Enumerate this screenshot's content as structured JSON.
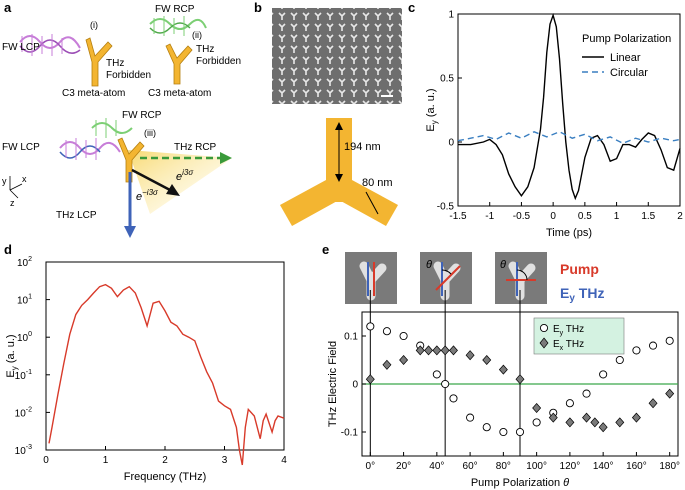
{
  "panels": {
    "a": {
      "label": "a",
      "cell_i": {
        "roman": "(i)",
        "pump": "FW LCP",
        "status_line1": "THz",
        "status_line2": "Forbidden",
        "caption": "C3 meta-atom"
      },
      "cell_ii": {
        "roman": "(ii)",
        "pump": "FW RCP",
        "status_line1": "THz",
        "status_line2": "Forbidden",
        "caption": "C3 meta-atom"
      },
      "cell_iii": {
        "roman": "(iii)",
        "pump_top": "FW RCP",
        "pump_left": "FW LCP",
        "out_rcp": "THz RCP",
        "out_lcp": "THz LCP",
        "phase_pos": "e",
        "phase_pos_exp": "i3σ",
        "phase_neg": "e",
        "phase_neg_exp": "−i3σ"
      },
      "axes": {
        "y": "y",
        "x": "x",
        "z": "z"
      },
      "colors": {
        "gold": "#f3b531",
        "lcp": "#c77dd8",
        "rcp": "#7ccf74",
        "blue": "#3f63b8",
        "green": "#3a9a3a"
      }
    },
    "b": {
      "label": "b",
      "dim_arm_length": "194 nm",
      "dim_arm_width": "80 nm"
    }
  },
  "chart_data": [
    {
      "panel": "c",
      "type": "line",
      "ylabel": "E",
      "ylabel_sub": "y",
      "ylabel_suffix": " (a. u.)",
      "xlabel": "Time (ps)",
      "xlim": [
        -1.5,
        2
      ],
      "ylim": [
        -0.5,
        1.0
      ],
      "xticks": [
        "-1.5",
        "-1",
        "-0.5",
        "0",
        "0.5",
        "1",
        "1.5",
        "2"
      ],
      "yticks": [
        "-0.5",
        "0",
        "0.5",
        "1"
      ],
      "legend_title": "Pump Polarization",
      "legend_position": "top-right",
      "series": [
        {
          "name": "Linear",
          "color": "#000000",
          "style": "solid",
          "x": [
            -1.5,
            -1.3,
            -1.1,
            -1.0,
            -0.9,
            -0.8,
            -0.7,
            -0.6,
            -0.5,
            -0.4,
            -0.3,
            -0.2,
            -0.15,
            -0.1,
            -0.05,
            0.0,
            0.05,
            0.1,
            0.15,
            0.2,
            0.25,
            0.3,
            0.35,
            0.4,
            0.5,
            0.6,
            0.7,
            0.8,
            0.9,
            1.0,
            1.1,
            1.2,
            1.3,
            1.4,
            1.5,
            1.6,
            1.7,
            1.8,
            1.9,
            2.0
          ],
          "y": [
            -0.02,
            -0.02,
            0.0,
            0.02,
            -0.02,
            -0.1,
            -0.25,
            -0.35,
            -0.42,
            -0.35,
            -0.2,
            0.1,
            0.35,
            0.7,
            0.92,
            0.99,
            0.9,
            0.65,
            0.3,
            0.0,
            -0.22,
            -0.37,
            -0.44,
            -0.38,
            -0.12,
            0.03,
            0.05,
            -0.02,
            -0.15,
            -0.13,
            -0.02,
            -0.02,
            -0.04,
            0.02,
            0.07,
            0.05,
            -0.06,
            -0.2,
            -0.22,
            -0.05
          ]
        },
        {
          "name": "Circular",
          "color": "#3a7fc1",
          "style": "dashed",
          "x": [
            -1.5,
            -1.3,
            -1.1,
            -0.9,
            -0.7,
            -0.5,
            -0.3,
            -0.1,
            0.1,
            0.3,
            0.5,
            0.7,
            0.9,
            1.1,
            1.3,
            1.5,
            1.7,
            1.9,
            2.0
          ],
          "y": [
            0.01,
            0.03,
            0.05,
            0.02,
            0.07,
            0.03,
            0.08,
            0.04,
            0.08,
            0.03,
            0.06,
            0.01,
            0.04,
            -0.01,
            0.03,
            0.0,
            0.03,
            0.01,
            0.02
          ]
        }
      ]
    },
    {
      "panel": "d",
      "type": "line",
      "ylabel": "E",
      "ylabel_sub": "y",
      "ylabel_suffix": " (a. u.)",
      "xlabel": "Frequency (THz)",
      "xlim": [
        0,
        4
      ],
      "ylim_log10": [
        -3,
        2
      ],
      "log_scale_y": true,
      "xticks": [
        "0",
        "1",
        "2",
        "3",
        "4"
      ],
      "yticks": [
        {
          "base": "10",
          "exp": "-3"
        },
        {
          "base": "10",
          "exp": "-2"
        },
        {
          "base": "10",
          "exp": "-1"
        },
        {
          "base": "10",
          "exp": "0"
        },
        {
          "base": "10",
          "exp": "1"
        },
        {
          "base": "10",
          "exp": "2"
        }
      ],
      "series": [
        {
          "color": "#d83a2a",
          "x": [
            0.05,
            0.1,
            0.2,
            0.3,
            0.4,
            0.5,
            0.6,
            0.7,
            0.8,
            0.9,
            1.0,
            1.1,
            1.2,
            1.3,
            1.4,
            1.5,
            1.6,
            1.7,
            1.8,
            1.9,
            2.0,
            2.1,
            2.2,
            2.3,
            2.4,
            2.5,
            2.6,
            2.7,
            2.8,
            2.9,
            3.0,
            3.1,
            3.2,
            3.25,
            3.3,
            3.35,
            3.4,
            3.5,
            3.6,
            3.65,
            3.7,
            3.8,
            3.85,
            3.9,
            4.0
          ],
          "y": [
            0.0015,
            0.004,
            0.03,
            0.2,
            1.2,
            4.0,
            7.0,
            10.0,
            15.0,
            22.0,
            25.0,
            20.0,
            12.0,
            18.0,
            22.0,
            15.0,
            6.0,
            2.0,
            8.0,
            9.0,
            5.0,
            2.5,
            2.0,
            1.2,
            1.0,
            0.8,
            0.3,
            0.12,
            0.06,
            0.02,
            0.015,
            0.012,
            0.004,
            0.001,
            0.0004,
            0.004,
            0.012,
            0.008,
            0.002,
            0.006,
            0.009,
            0.003,
            0.006,
            0.008,
            0.007
          ]
        }
      ]
    },
    {
      "panel": "e",
      "type": "scatter",
      "ylabel": "THz Electric Field",
      "xlabel_text": "Pump Polarization ",
      "xlabel_symbol": "θ",
      "xlim": [
        -5,
        185
      ],
      "ylim": [
        -0.15,
        0.15
      ],
      "xticks": [
        "0°",
        "20°",
        "40°",
        "60°",
        "80°",
        "100°",
        "120°",
        "140°",
        "160°",
        "180°"
      ],
      "yticks": [
        "-0.1",
        "0",
        "0.1"
      ],
      "legend_position": "top-right",
      "legend_labels": [
        {
          "name": "E",
          "sub": "y",
          "suffix": " THz"
        },
        {
          "name": "E",
          "sub": "x",
          "suffix": " THz"
        }
      ],
      "markers_labels": {
        "pump": "Pump",
        "ey_prefix": "E",
        "ey_sub": "y",
        "ey_suffix": " THz",
        "theta": "θ"
      },
      "vlines": [
        0,
        45,
        90
      ],
      "series": [
        {
          "name": "Ey THz",
          "marker": "open-circle",
          "x": [
            0,
            10,
            20,
            30,
            40,
            45,
            50,
            60,
            70,
            80,
            90,
            100,
            110,
            120,
            130,
            140,
            150,
            160,
            170,
            180
          ],
          "y": [
            0.12,
            0.11,
            0.1,
            0.08,
            0.02,
            0.0,
            -0.03,
            -0.07,
            -0.09,
            -0.1,
            -0.1,
            -0.08,
            -0.06,
            -0.04,
            -0.02,
            0.02,
            0.05,
            0.07,
            0.08,
            0.09
          ]
        },
        {
          "name": "Ex THz",
          "marker": "filled-diamond",
          "x": [
            0,
            10,
            20,
            30,
            35,
            40,
            45,
            50,
            60,
            70,
            80,
            90,
            100,
            110,
            120,
            130,
            135,
            140,
            150,
            160,
            170,
            180
          ],
          "y": [
            0.01,
            0.04,
            0.05,
            0.07,
            0.07,
            0.07,
            0.07,
            0.07,
            0.06,
            0.05,
            0.03,
            0.01,
            -0.05,
            -0.07,
            -0.08,
            -0.07,
            -0.08,
            -0.09,
            -0.08,
            -0.07,
            -0.04,
            -0.02
          ]
        }
      ],
      "zero_line_color": "#3aa84a"
    }
  ]
}
